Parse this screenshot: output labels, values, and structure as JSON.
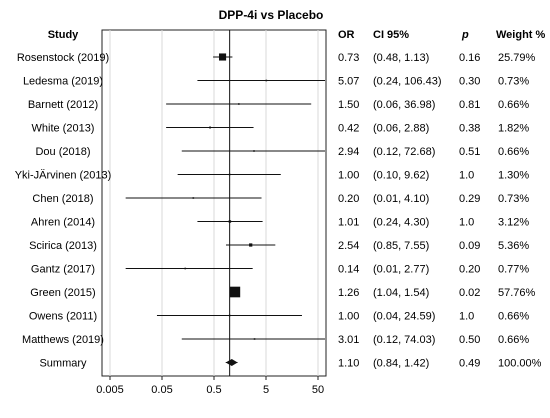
{
  "chart_data": {
    "type": "forest",
    "title": "DPP-4i vs Placebo",
    "headers": {
      "study": "Study",
      "or": "OR",
      "ci": "CI 95%",
      "p": "p",
      "weight": "Weight %"
    },
    "x_scale": "log",
    "xlim": [
      0.005,
      50
    ],
    "x_ticks": [
      0.005,
      0.05,
      0.5,
      5,
      50
    ],
    "x_tick_labels": [
      "0.005",
      "0.05",
      "0.5",
      "5",
      "50"
    ],
    "reference_line": 1,
    "grid": "vertical",
    "rows": [
      {
        "study": "Rosenstock (2019)",
        "or": 0.73,
        "ci_low": 0.48,
        "ci_high": 1.13,
        "or_label": "0.73",
        "ci_label": "(0.48, 1.13)",
        "p_label": "0.16",
        "weight": 25.79,
        "weight_label": "25.79%"
      },
      {
        "study": "Ledesma (2019)",
        "or": 5.07,
        "ci_low": 0.24,
        "ci_high": 106.43,
        "or_label": "5.07",
        "ci_label": "(0.24, 106.43)",
        "p_label": "0.30",
        "weight": 0.73,
        "weight_label": "0.73%"
      },
      {
        "study": "Barnett (2012)",
        "or": 1.5,
        "ci_low": 0.06,
        "ci_high": 36.98,
        "or_label": "1.50",
        "ci_label": "(0.06, 36.98)",
        "p_label": "0.81",
        "weight": 0.66,
        "weight_label": "0.66%"
      },
      {
        "study": "White (2013)",
        "or": 0.42,
        "ci_low": 0.06,
        "ci_high": 2.88,
        "or_label": "0.42",
        "ci_label": "(0.06, 2.88)",
        "p_label": "0.38",
        "weight": 1.82,
        "weight_label": "1.82%"
      },
      {
        "study": "Dou (2018)",
        "or": 2.94,
        "ci_low": 0.12,
        "ci_high": 72.68,
        "or_label": "2.94",
        "ci_label": "(0.12, 72.68)",
        "p_label": "0.51",
        "weight": 0.66,
        "weight_label": "0.66%"
      },
      {
        "study": "Yki-JÄrvinen (2013)",
        "or": 1.0,
        "ci_low": 0.1,
        "ci_high": 9.62,
        "or_label": "1.00",
        "ci_label": "(0.10, 9.62)",
        "p_label": "1.0",
        "weight": 1.3,
        "weight_label": "1.30%"
      },
      {
        "study": "Chen (2018)",
        "or": 0.2,
        "ci_low": 0.01,
        "ci_high": 4.1,
        "or_label": "0.20",
        "ci_label": "(0.01, 4.10)",
        "p_label": "0.29",
        "weight": 0.73,
        "weight_label": "0.73%"
      },
      {
        "study": "Ahren (2014)",
        "or": 1.01,
        "ci_low": 0.24,
        "ci_high": 4.3,
        "or_label": "1.01",
        "ci_label": "(0.24, 4.30)",
        "p_label": "1.0",
        "weight": 3.12,
        "weight_label": "3.12%"
      },
      {
        "study": "Scirica (2013)",
        "or": 2.54,
        "ci_low": 0.85,
        "ci_high": 7.55,
        "or_label": "2.54",
        "ci_label": "(0.85, 7.55)",
        "p_label": "0.09",
        "weight": 5.36,
        "weight_label": "5.36%"
      },
      {
        "study": "Gantz (2017)",
        "or": 0.14,
        "ci_low": 0.01,
        "ci_high": 2.77,
        "or_label": "0.14",
        "ci_label": "(0.01, 2.77)",
        "p_label": "0.20",
        "weight": 0.77,
        "weight_label": "0.77%"
      },
      {
        "study": "Green (2015)",
        "or": 1.26,
        "ci_low": 1.04,
        "ci_high": 1.54,
        "or_label": "1.26",
        "ci_label": "(1.04, 1.54)",
        "p_label": "0.02",
        "weight": 57.76,
        "weight_label": "57.76%"
      },
      {
        "study": "Owens (2011)",
        "or": 1.0,
        "ci_low": 0.04,
        "ci_high": 24.59,
        "or_label": "1.00",
        "ci_label": "(0.04, 24.59)",
        "p_label": "1.0",
        "weight": 0.66,
        "weight_label": "0.66%"
      },
      {
        "study": "Matthews (2019)",
        "or": 3.01,
        "ci_low": 0.12,
        "ci_high": 74.03,
        "or_label": "3.01",
        "ci_label": "(0.12, 74.03)",
        "p_label": "0.50",
        "weight": 0.66,
        "weight_label": "0.66%"
      }
    ],
    "summary": {
      "study": "Summary",
      "or": 1.1,
      "ci_low": 0.84,
      "ci_high": 1.42,
      "or_label": "1.10",
      "ci_label": "(0.84, 1.42)",
      "p_label": "0.49",
      "weight": 100.0,
      "weight_label": "100.00%"
    }
  }
}
